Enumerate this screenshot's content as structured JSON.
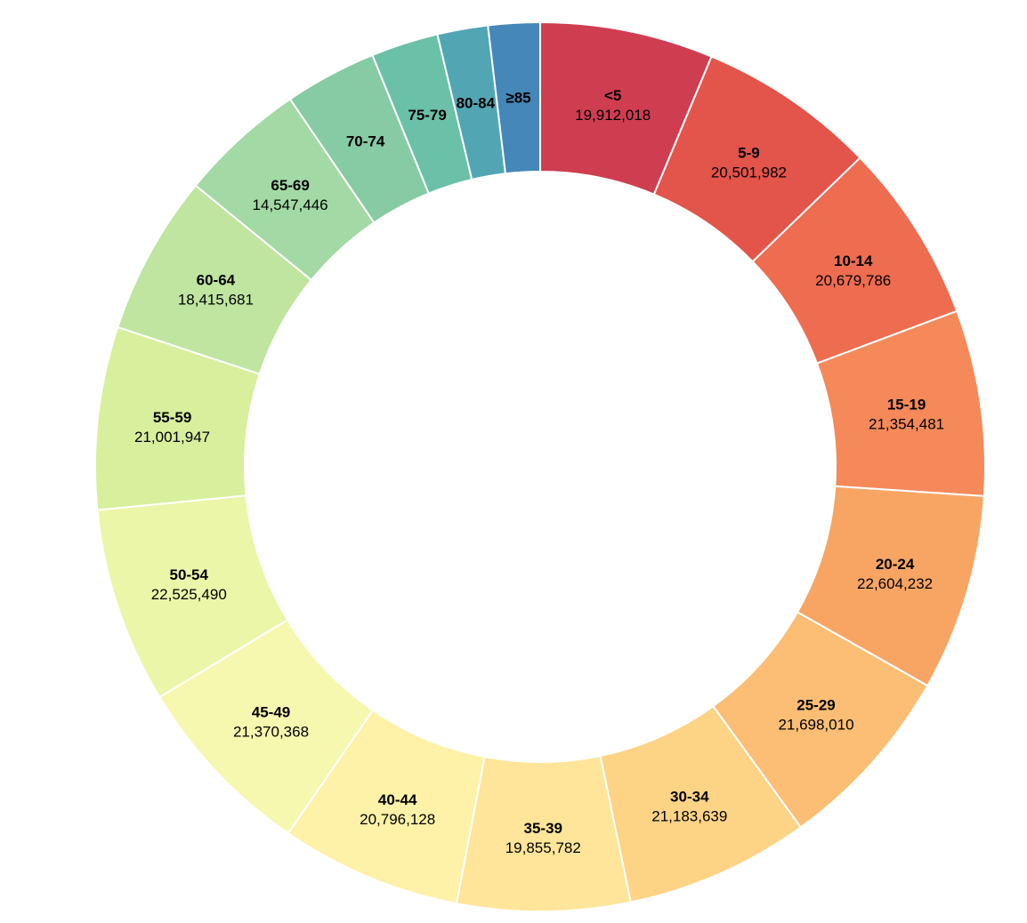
{
  "chart_data": {
    "type": "pie",
    "variant": "donut",
    "title": "",
    "categories": [
      "<5",
      "5-9",
      "10-14",
      "15-19",
      "20-24",
      "25-29",
      "30-34",
      "35-39",
      "40-44",
      "45-49",
      "50-54",
      "55-59",
      "60-64",
      "65-69",
      "70-74",
      "75-79",
      "80-84",
      "≥85"
    ],
    "values": [
      19912018,
      20501982,
      20679786,
      21354481,
      22604232,
      21698010,
      21183639,
      19855782,
      20796128,
      21370368,
      22525490,
      21001947,
      18415681,
      14547446,
      10587721,
      7730129,
      5811429,
      5938752
    ],
    "value_labels": [
      "19,912,018",
      "20,501,982",
      "20,679,786",
      "21,354,481",
      "22,604,232",
      "21,698,010",
      "21,183,639",
      "19,855,782",
      "20,796,128",
      "21,370,368",
      "22,525,490",
      "21,001,947",
      "18,415,681",
      "14,547,446",
      "",
      "",
      "",
      ""
    ],
    "colors": [
      "#cf3d51",
      "#e3544a",
      "#ee6c4f",
      "#f5895a",
      "#f8a564",
      "#fbbe74",
      "#fdd385",
      "#fee599",
      "#fef1a8",
      "#f6f8b0",
      "#ebf6a9",
      "#d8ef9d",
      "#bfe5a0",
      "#a2d9a4",
      "#87cba4",
      "#6bc1a7",
      "#52a6b3",
      "#4487b8"
    ],
    "legend": "none"
  }
}
